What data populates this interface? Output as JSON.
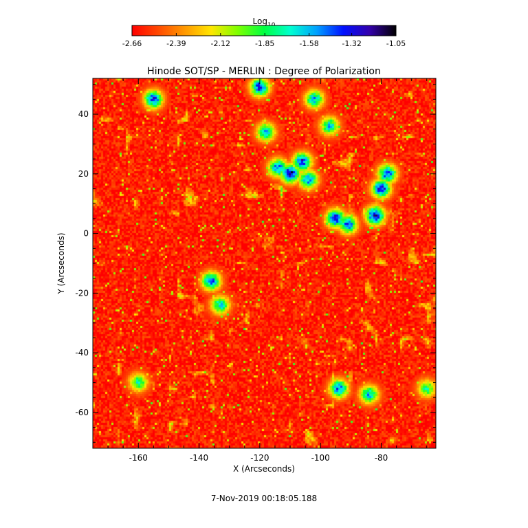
{
  "chart_data": {
    "type": "heatmap",
    "title": "Hinode SOT/SP - MERLIN : Degree of Polarization",
    "xlabel": "X (Arcseconds)",
    "ylabel": "Y (Arcseconds)",
    "xlim": [
      -175,
      -62
    ],
    "ylim": [
      -72,
      52
    ],
    "xticks": [
      -160,
      -140,
      -120,
      -100,
      -80
    ],
    "yticks": [
      -60,
      -40,
      -20,
      0,
      20,
      40
    ],
    "colorbar": {
      "label_main": "Log",
      "label_sub": "10",
      "range": [
        -2.66,
        -1.05
      ],
      "ticks": [
        "-2.66",
        "-2.39",
        "-2.12",
        "-1.85",
        "-1.58",
        "-1.32",
        "-1.05"
      ],
      "colormap": [
        "#ff0000",
        "#ff4a00",
        "#ff9900",
        "#ffe600",
        "#7fff00",
        "#00ff40",
        "#00ffd0",
        "#00a0ff",
        "#0010ff",
        "#3300aa",
        "#000000"
      ]
    },
    "field": {
      "background_log10_dop": -2.6,
      "regions_log10_dop": [
        {
          "x": -110,
          "y": 20,
          "peak": -1.1
        },
        {
          "x": -106,
          "y": 24,
          "peak": -1.25
        },
        {
          "x": -114,
          "y": 22,
          "peak": -1.35
        },
        {
          "x": -104,
          "y": 18,
          "peak": -1.4
        },
        {
          "x": -80,
          "y": 15,
          "peak": -1.2
        },
        {
          "x": -78,
          "y": 20,
          "peak": -1.3
        },
        {
          "x": -82,
          "y": 6,
          "peak": -1.15
        },
        {
          "x": -95,
          "y": 5,
          "peak": -1.2
        },
        {
          "x": -91,
          "y": 3,
          "peak": -1.35
        },
        {
          "x": -120,
          "y": 49,
          "peak": -1.25
        },
        {
          "x": -155,
          "y": 45,
          "peak": -1.3
        },
        {
          "x": -102,
          "y": 45,
          "peak": -1.5
        },
        {
          "x": -97,
          "y": 36,
          "peak": -1.55
        },
        {
          "x": -118,
          "y": 34,
          "peak": -1.5
        },
        {
          "x": -136,
          "y": -16,
          "peak": -1.35
        },
        {
          "x": -133,
          "y": -24,
          "peak": -1.6
        },
        {
          "x": -94,
          "y": -52,
          "peak": -1.35
        },
        {
          "x": -84,
          "y": -54,
          "peak": -1.5
        },
        {
          "x": -160,
          "y": -50,
          "peak": -1.7
        },
        {
          "x": -65,
          "y": -52,
          "peak": -1.75
        }
      ]
    }
  },
  "footer": {
    "timestamp": "7-Nov-2019 00:18:05.188"
  }
}
